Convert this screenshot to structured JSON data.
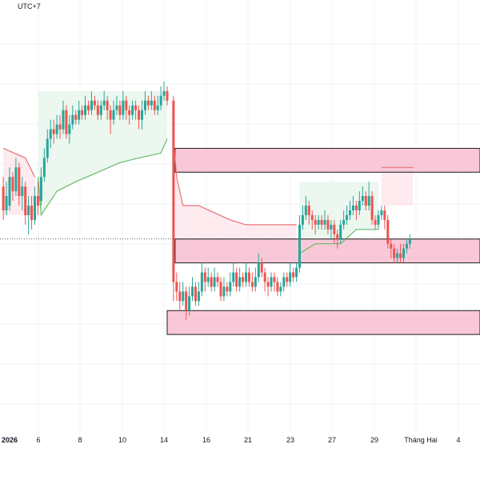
{
  "header": {
    "timezone_label": "UTC+7"
  },
  "colors": {
    "up": "#26a69a",
    "down": "#ef5350",
    "bull_fill": "#e8f6ec",
    "bear_fill": "#fde8ec",
    "bull_line": "#66bb6a",
    "bear_line": "#e57373",
    "zone_fill": "#f8c8d8",
    "zone_border": "#1b1b1b",
    "grid": "#f0f3fa"
  },
  "chart_data": {
    "type": "candlestick",
    "xaxis_ticks": [
      "2026",
      "6",
      "8",
      "10",
      "14",
      "16",
      "21",
      "23",
      "27",
      "29",
      "Tháng Hai",
      "4"
    ],
    "grid": true,
    "zones": [
      {
        "name": "upper-resistance-zone",
        "y_top": 0.76,
        "y_bottom": 0.71,
        "x_start": 10.5,
        "x_end": 32
      },
      {
        "name": "middle-support-zone",
        "y_top": 0.57,
        "y_bottom": 0.52,
        "x_start": 10.5,
        "x_end": 32
      },
      {
        "name": "lower-support-zone",
        "y_top": 0.42,
        "y_bottom": 0.37,
        "x_start": 10.0,
        "x_end": 32
      }
    ],
    "candles": [
      [
        -0.4,
        0.68,
        0.63,
        0.7,
        0.61
      ],
      [
        -0.2,
        0.63,
        0.66,
        0.69,
        0.62
      ],
      [
        0.0,
        0.64,
        0.7,
        0.72,
        0.63
      ],
      [
        0.2,
        0.7,
        0.67,
        0.71,
        0.65
      ],
      [
        0.4,
        0.67,
        0.72,
        0.74,
        0.66
      ],
      [
        0.6,
        0.72,
        0.66,
        0.73,
        0.64
      ],
      [
        0.8,
        0.66,
        0.68,
        0.7,
        0.63
      ],
      [
        1.0,
        0.68,
        0.62,
        0.69,
        0.6
      ],
      [
        1.2,
        0.62,
        0.64,
        0.66,
        0.58
      ],
      [
        1.4,
        0.64,
        0.61,
        0.66,
        0.59
      ],
      [
        1.6,
        0.61,
        0.66,
        0.68,
        0.6
      ],
      [
        1.8,
        0.66,
        0.64,
        0.69,
        0.62
      ],
      [
        2.0,
        0.65,
        0.7,
        0.72,
        0.64
      ],
      [
        2.2,
        0.7,
        0.74,
        0.76,
        0.69
      ],
      [
        2.4,
        0.74,
        0.78,
        0.8,
        0.73
      ],
      [
        2.6,
        0.78,
        0.8,
        0.82,
        0.76
      ],
      [
        2.8,
        0.8,
        0.79,
        0.82,
        0.77
      ],
      [
        3.0,
        0.79,
        0.81,
        0.83,
        0.78
      ],
      [
        3.2,
        0.81,
        0.8,
        0.83,
        0.78
      ],
      [
        3.4,
        0.8,
        0.84,
        0.86,
        0.79
      ],
      [
        3.6,
        0.84,
        0.79,
        0.85,
        0.78
      ],
      [
        3.8,
        0.79,
        0.81,
        0.83,
        0.77
      ],
      [
        4.0,
        0.81,
        0.83,
        0.85,
        0.8
      ],
      [
        4.2,
        0.83,
        0.82,
        0.84,
        0.81
      ],
      [
        4.4,
        0.82,
        0.84,
        0.86,
        0.81
      ],
      [
        4.6,
        0.84,
        0.83,
        0.85,
        0.82
      ],
      [
        4.8,
        0.83,
        0.85,
        0.87,
        0.82
      ],
      [
        5.0,
        0.85,
        0.84,
        0.86,
        0.83
      ],
      [
        5.2,
        0.84,
        0.86,
        0.88,
        0.83
      ],
      [
        5.4,
        0.86,
        0.85,
        0.87,
        0.84
      ],
      [
        5.6,
        0.85,
        0.83,
        0.86,
        0.82
      ],
      [
        5.8,
        0.83,
        0.85,
        0.86,
        0.82
      ],
      [
        6.0,
        0.85,
        0.86,
        0.88,
        0.84
      ],
      [
        6.2,
        0.86,
        0.84,
        0.87,
        0.82
      ],
      [
        6.4,
        0.84,
        0.82,
        0.85,
        0.79
      ],
      [
        6.6,
        0.82,
        0.84,
        0.86,
        0.81
      ],
      [
        6.8,
        0.84,
        0.85,
        0.87,
        0.83
      ],
      [
        7.0,
        0.85,
        0.83,
        0.86,
        0.82
      ],
      [
        7.2,
        0.83,
        0.86,
        0.88,
        0.82
      ],
      [
        7.4,
        0.86,
        0.84,
        0.87,
        0.82
      ],
      [
        7.6,
        0.84,
        0.83,
        0.85,
        0.81
      ],
      [
        7.8,
        0.83,
        0.85,
        0.86,
        0.82
      ],
      [
        8.0,
        0.85,
        0.84,
        0.86,
        0.82
      ],
      [
        8.2,
        0.84,
        0.82,
        0.85,
        0.8
      ],
      [
        8.4,
        0.82,
        0.84,
        0.86,
        0.8
      ],
      [
        8.6,
        0.84,
        0.86,
        0.88,
        0.83
      ],
      [
        8.8,
        0.86,
        0.85,
        0.87,
        0.84
      ],
      [
        9.0,
        0.85,
        0.86,
        0.88,
        0.84
      ],
      [
        9.2,
        0.86,
        0.84,
        0.87,
        0.83
      ],
      [
        9.4,
        0.84,
        0.85,
        0.87,
        0.83
      ],
      [
        9.6,
        0.85,
        0.87,
        0.89,
        0.84
      ],
      [
        9.8,
        0.87,
        0.88,
        0.9,
        0.86
      ],
      [
        10.0,
        0.88,
        0.86,
        0.89,
        0.85
      ],
      [
        10.4,
        0.86,
        0.48,
        0.87,
        0.44
      ],
      [
        10.6,
        0.48,
        0.46,
        0.5,
        0.44
      ],
      [
        10.8,
        0.46,
        0.44,
        0.48,
        0.42
      ],
      [
        11.0,
        0.44,
        0.46,
        0.48,
        0.43
      ],
      [
        11.2,
        0.46,
        0.42,
        0.47,
        0.4
      ],
      [
        11.4,
        0.42,
        0.45,
        0.47,
        0.41
      ],
      [
        11.6,
        0.45,
        0.47,
        0.49,
        0.44
      ],
      [
        11.8,
        0.47,
        0.44,
        0.48,
        0.43
      ],
      [
        12.0,
        0.44,
        0.46,
        0.48,
        0.43
      ],
      [
        12.2,
        0.46,
        0.5,
        0.52,
        0.45
      ],
      [
        12.4,
        0.5,
        0.48,
        0.51,
        0.46
      ],
      [
        12.6,
        0.48,
        0.49,
        0.51,
        0.47
      ],
      [
        12.8,
        0.49,
        0.47,
        0.5,
        0.46
      ],
      [
        13.0,
        0.47,
        0.49,
        0.51,
        0.46
      ],
      [
        13.2,
        0.49,
        0.48,
        0.5,
        0.47
      ],
      [
        13.4,
        0.48,
        0.45,
        0.49,
        0.44
      ],
      [
        13.6,
        0.45,
        0.47,
        0.49,
        0.44
      ],
      [
        13.8,
        0.47,
        0.46,
        0.48,
        0.45
      ],
      [
        14.0,
        0.46,
        0.48,
        0.5,
        0.45
      ],
      [
        14.2,
        0.48,
        0.5,
        0.52,
        0.47
      ],
      [
        14.4,
        0.5,
        0.47,
        0.51,
        0.46
      ],
      [
        14.6,
        0.47,
        0.49,
        0.51,
        0.46
      ],
      [
        14.8,
        0.49,
        0.48,
        0.5,
        0.47
      ],
      [
        15.0,
        0.48,
        0.5,
        0.52,
        0.47
      ],
      [
        15.2,
        0.5,
        0.48,
        0.51,
        0.47
      ],
      [
        15.4,
        0.48,
        0.47,
        0.5,
        0.46
      ],
      [
        15.6,
        0.47,
        0.49,
        0.51,
        0.46
      ],
      [
        15.8,
        0.49,
        0.52,
        0.54,
        0.48
      ],
      [
        16.0,
        0.52,
        0.5,
        0.53,
        0.49
      ],
      [
        16.2,
        0.5,
        0.48,
        0.51,
        0.46
      ],
      [
        16.4,
        0.48,
        0.47,
        0.49,
        0.45
      ],
      [
        16.6,
        0.47,
        0.49,
        0.5,
        0.46
      ],
      [
        16.8,
        0.49,
        0.48,
        0.5,
        0.46
      ],
      [
        17.0,
        0.48,
        0.46,
        0.49,
        0.45
      ],
      [
        17.2,
        0.46,
        0.47,
        0.48,
        0.45
      ],
      [
        17.4,
        0.47,
        0.49,
        0.5,
        0.46
      ],
      [
        17.6,
        0.49,
        0.48,
        0.5,
        0.47
      ],
      [
        17.8,
        0.48,
        0.5,
        0.52,
        0.47
      ],
      [
        18.0,
        0.5,
        0.49,
        0.51,
        0.48
      ],
      [
        18.2,
        0.49,
        0.51,
        0.52,
        0.48
      ],
      [
        18.4,
        0.51,
        0.6,
        0.62,
        0.5
      ],
      [
        18.6,
        0.6,
        0.62,
        0.64,
        0.59
      ],
      [
        18.8,
        0.62,
        0.64,
        0.66,
        0.61
      ],
      [
        19.0,
        0.64,
        0.62,
        0.65,
        0.6
      ],
      [
        19.2,
        0.62,
        0.61,
        0.63,
        0.59
      ],
      [
        19.4,
        0.61,
        0.6,
        0.62,
        0.58
      ],
      [
        19.6,
        0.6,
        0.61,
        0.62,
        0.59
      ],
      [
        19.8,
        0.61,
        0.6,
        0.62,
        0.59
      ],
      [
        20.0,
        0.6,
        0.61,
        0.63,
        0.59
      ],
      [
        20.2,
        0.61,
        0.59,
        0.62,
        0.58
      ],
      [
        20.4,
        0.59,
        0.6,
        0.61,
        0.57
      ],
      [
        20.6,
        0.6,
        0.58,
        0.61,
        0.56
      ],
      [
        20.8,
        0.58,
        0.57,
        0.59,
        0.55
      ],
      [
        21.0,
        0.57,
        0.6,
        0.61,
        0.56
      ],
      [
        21.2,
        0.6,
        0.61,
        0.63,
        0.59
      ],
      [
        21.4,
        0.61,
        0.62,
        0.64,
        0.6
      ],
      [
        21.6,
        0.62,
        0.63,
        0.65,
        0.61
      ],
      [
        21.8,
        0.63,
        0.64,
        0.66,
        0.62
      ],
      [
        22.0,
        0.64,
        0.63,
        0.65,
        0.61
      ],
      [
        22.2,
        0.63,
        0.65,
        0.67,
        0.62
      ],
      [
        22.4,
        0.65,
        0.66,
        0.68,
        0.64
      ],
      [
        22.6,
        0.66,
        0.64,
        0.67,
        0.63
      ],
      [
        22.8,
        0.64,
        0.66,
        0.69,
        0.63
      ],
      [
        23.0,
        0.66,
        0.61,
        0.67,
        0.6
      ],
      [
        23.2,
        0.61,
        0.6,
        0.62,
        0.59
      ],
      [
        23.4,
        0.6,
        0.62,
        0.63,
        0.59
      ],
      [
        23.6,
        0.62,
        0.63,
        0.64,
        0.61
      ],
      [
        23.8,
        0.63,
        0.61,
        0.64,
        0.59
      ],
      [
        24.0,
        0.61,
        0.56,
        0.62,
        0.55
      ],
      [
        24.2,
        0.56,
        0.55,
        0.57,
        0.53
      ],
      [
        24.4,
        0.55,
        0.53,
        0.56,
        0.52
      ],
      [
        24.6,
        0.53,
        0.54,
        0.55,
        0.52
      ],
      [
        24.8,
        0.54,
        0.53,
        0.56,
        0.52
      ],
      [
        25.0,
        0.53,
        0.55,
        0.56,
        0.52
      ],
      [
        25.2,
        0.55,
        0.56,
        0.57,
        0.54
      ],
      [
        25.4,
        0.56,
        0.57,
        0.58,
        0.55
      ]
    ],
    "trail": [
      [
        -0.4,
        0.76,
        "bear"
      ],
      [
        1.0,
        0.74,
        "bear"
      ],
      [
        1.6,
        0.7,
        "bear"
      ],
      [
        1.8,
        0.7,
        "bull"
      ],
      [
        2.0,
        0.62,
        "bull"
      ],
      [
        3.0,
        0.67,
        "bull"
      ],
      [
        4.2,
        0.69,
        "bull"
      ],
      [
        5.6,
        0.71,
        "bull"
      ],
      [
        7.0,
        0.73,
        "bull"
      ],
      [
        8.2,
        0.74,
        "bull"
      ],
      [
        9.6,
        0.75,
        "bull"
      ],
      [
        10.0,
        0.78,
        "bull"
      ],
      [
        10.4,
        0.78,
        "bear"
      ],
      [
        10.6,
        0.7,
        "bear"
      ],
      [
        11.0,
        0.64,
        "bear"
      ],
      [
        12.0,
        0.64,
        "bear"
      ],
      [
        14.0,
        0.61,
        "bear"
      ],
      [
        15.0,
        0.6,
        "bear"
      ],
      [
        17.5,
        0.6,
        "bear"
      ],
      [
        18.2,
        0.6,
        "bear"
      ],
      [
        18.4,
        0.54,
        "bull"
      ],
      [
        19.4,
        0.56,
        "bull"
      ],
      [
        21.0,
        0.56,
        "bull"
      ],
      [
        22.0,
        0.59,
        "bull"
      ],
      [
        23.4,
        0.59,
        "bull"
      ],
      [
        23.6,
        0.72,
        "bear"
      ],
      [
        24.4,
        0.72,
        "bear"
      ],
      [
        25.6,
        0.72,
        "bear"
      ]
    ]
  }
}
